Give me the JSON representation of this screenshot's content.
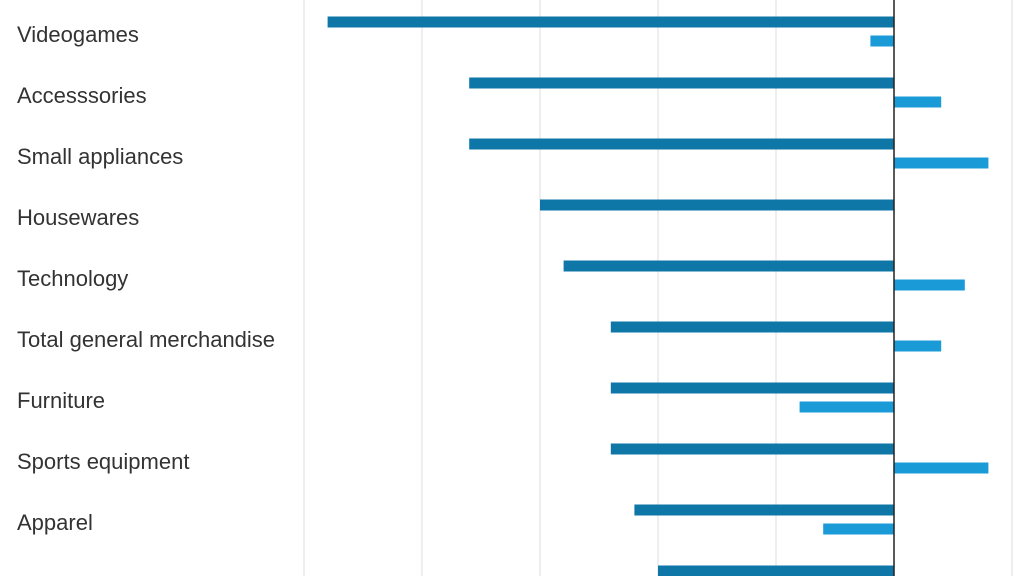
{
  "chart_data": {
    "type": "bar",
    "orientation": "horizontal",
    "categories": [
      "Videogames",
      "Accesssories",
      "Small appliances",
      "Housewares",
      "Technology",
      "Total general merchandise",
      "Furniture",
      "Sports equipment",
      "Apparel",
      ""
    ],
    "series": [
      {
        "color": "#0f76a8",
        "values": [
          -48,
          -36,
          -36,
          -30,
          -28,
          -24,
          -24,
          -24,
          -22,
          -20
        ]
      },
      {
        "color": "#1a9bd7",
        "values": [
          -2,
          4,
          8,
          0,
          6,
          4,
          -8,
          8,
          -6,
          0
        ]
      }
    ],
    "xlim": [
      -50,
      10
    ],
    "grid": true,
    "legend": "none"
  }
}
